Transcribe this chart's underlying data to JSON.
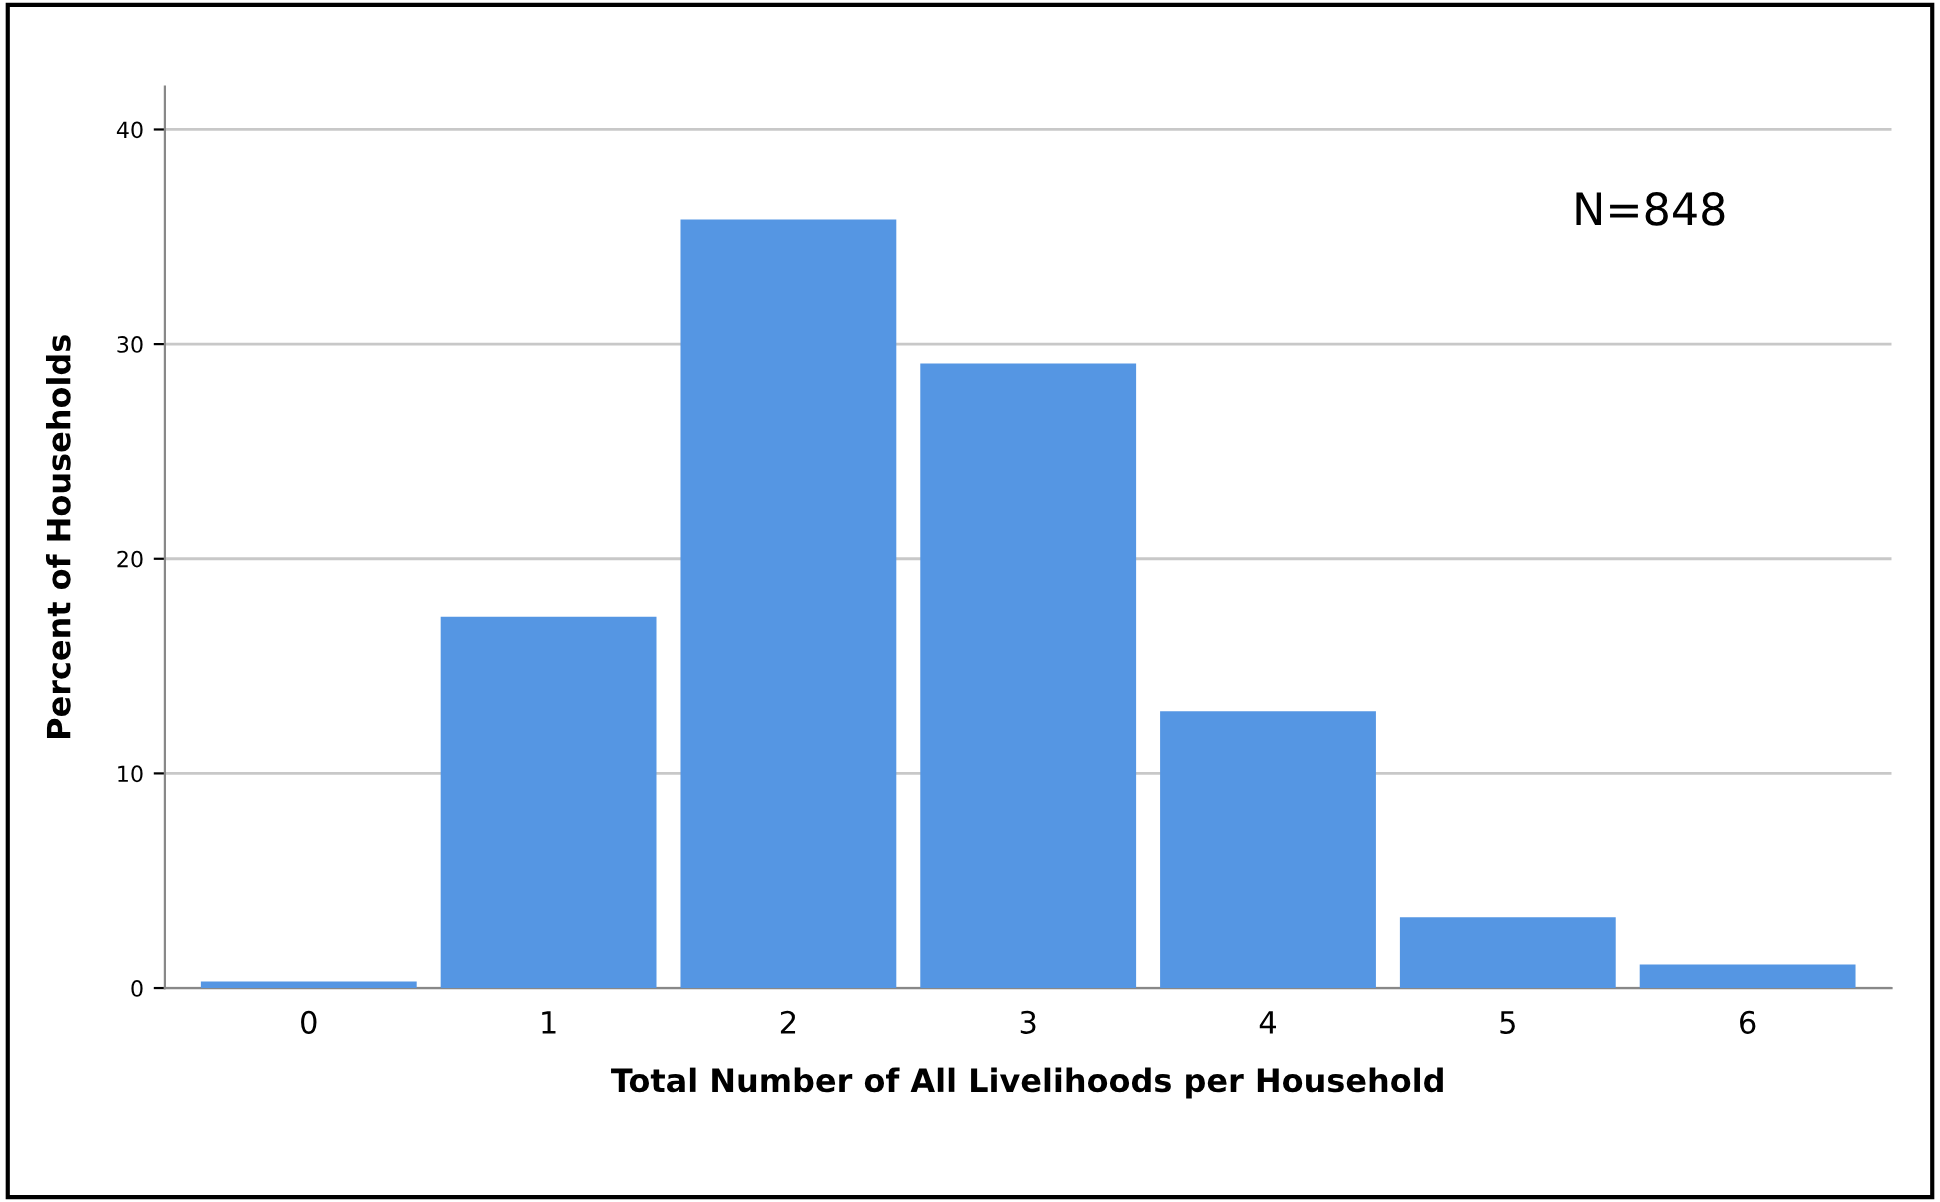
{
  "chart_data": {
    "type": "bar",
    "xlabel": "Total Number of All Livelihoods per Household",
    "ylabel": "Percent of Households",
    "categories": [
      "0",
      "1",
      "2",
      "3",
      "4",
      "5",
      "6"
    ],
    "values": [
      0.3,
      17.3,
      35.8,
      29.1,
      12.9,
      3.3,
      1.1
    ],
    "color": "#5596e3",
    "ylim": [
      0,
      42
    ],
    "yticks": [
      0,
      10,
      20,
      30,
      40
    ],
    "grid": "y",
    "annotations": [
      "N=848"
    ]
  }
}
